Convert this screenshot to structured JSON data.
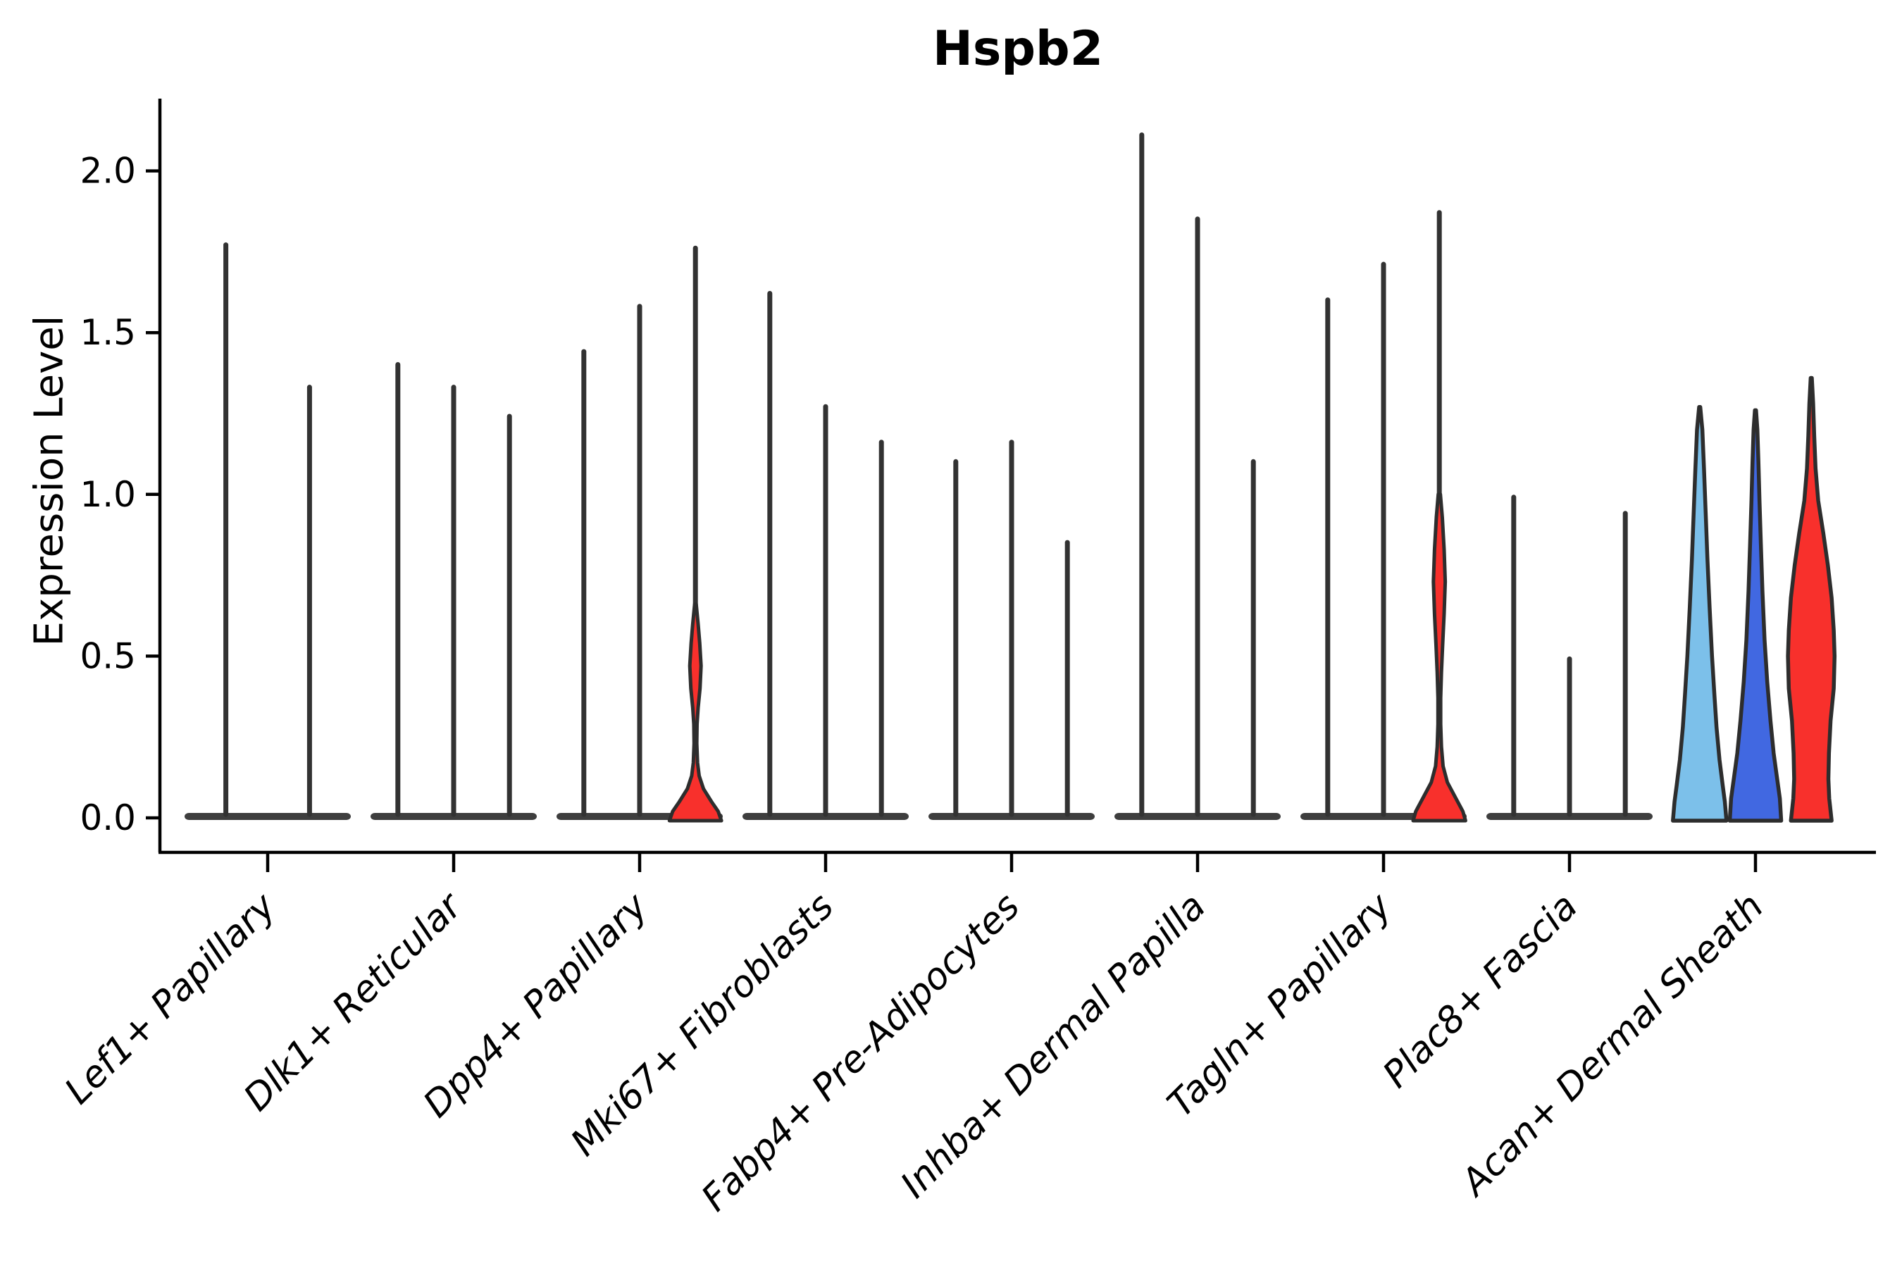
{
  "chart_data": {
    "type": "violin",
    "title": "Hspb2",
    "ylabel": "Expression Level",
    "xlabel": "",
    "grid": false,
    "legend": "none",
    "ylim": [
      0,
      2.2
    ],
    "yticks": [
      "0.0",
      "0.5",
      "1.0",
      "1.5",
      "2.0"
    ],
    "ytick_values": [
      0,
      0.5,
      1.0,
      1.5,
      2.0
    ],
    "categories": [
      "Lef1+ Papillary",
      "Dlk1+ Reticular",
      "Dpp4+ Papillary",
      "Mki67+ Fibroblasts",
      "Fabp4+ Pre-Adipocytes",
      "Inhba+ Dermal Papilla",
      "Tagln+ Papillary",
      "Plac8+ Fascia",
      "Acan+ Dermal Sheath"
    ],
    "styles": {
      "spike_color": "#323232",
      "outline": "#2d2d2d",
      "base_color": "#3e3e3e",
      "split_color_1": "#7cc0ea",
      "split_color_2": "#4168e1",
      "split_color_3": "#f8302c",
      "axis_color": "#000000"
    },
    "groups": [
      {
        "category": "Lef1+ Papillary",
        "violins": [
          {
            "type": "spike",
            "max": 1.78
          },
          {
            "type": "spike",
            "max": 1.34
          }
        ]
      },
      {
        "category": "Dlk1+ Reticular",
        "violins": [
          {
            "type": "spike",
            "max": 1.41
          },
          {
            "type": "spike",
            "max": 1.34
          },
          {
            "type": "spike",
            "max": 1.25
          }
        ]
      },
      {
        "category": "Dpp4+ Papillary",
        "violins": [
          {
            "type": "spike",
            "max": 1.45
          },
          {
            "type": "spike",
            "max": 1.59
          },
          {
            "type": "spike-belly",
            "max": 1.77,
            "color": "#f8302c",
            "belly": [
              [
                0.66,
                0.03
              ],
              [
                0.6,
                0.1
              ],
              [
                0.54,
                0.16
              ],
              [
                0.47,
                0.21
              ],
              [
                0.4,
                0.17
              ],
              [
                0.34,
                0.1
              ],
              [
                0.29,
                0.06
              ],
              [
                0.23,
                0.05
              ],
              [
                0.17,
                0.08
              ],
              [
                0.13,
                0.14
              ],
              [
                0.09,
                0.3
              ],
              [
                0.05,
                0.6
              ],
              [
                0.02,
                0.85
              ],
              [
                0,
                0.97
              ]
            ]
          }
        ]
      },
      {
        "category": "Mki67+ Fibroblasts",
        "violins": [
          {
            "type": "spike",
            "max": 1.63
          },
          {
            "type": "spike",
            "max": 1.28
          },
          {
            "type": "spike",
            "max": 1.17
          }
        ]
      },
      {
        "category": "Fabp4+ Pre-Adipocytes",
        "violins": [
          {
            "type": "spike",
            "max": 1.11
          },
          {
            "type": "spike",
            "max": 1.17
          },
          {
            "type": "spike",
            "max": 0.86
          }
        ]
      },
      {
        "category": "Inhba+ Dermal Papilla",
        "violins": [
          {
            "type": "spike",
            "max": 2.12
          },
          {
            "type": "spike",
            "max": 1.86
          },
          {
            "type": "spike",
            "max": 1.11
          }
        ]
      },
      {
        "category": "Tagln+ Papillary",
        "violins": [
          {
            "type": "spike",
            "max": 1.61
          },
          {
            "type": "spike",
            "max": 1.72
          },
          {
            "type": "spike-belly",
            "max": 1.88,
            "color": "#f8302c",
            "belly": [
              [
                1.0,
                0.04
              ],
              [
                0.93,
                0.11
              ],
              [
                0.83,
                0.18
              ],
              [
                0.73,
                0.22
              ],
              [
                0.63,
                0.18
              ],
              [
                0.53,
                0.12
              ],
              [
                0.45,
                0.08
              ],
              [
                0.37,
                0.05
              ],
              [
                0.29,
                0.05
              ],
              [
                0.22,
                0.08
              ],
              [
                0.16,
                0.14
              ],
              [
                0.11,
                0.3
              ],
              [
                0.06,
                0.62
              ],
              [
                0.02,
                0.88
              ],
              [
                0,
                0.98
              ]
            ]
          }
        ]
      },
      {
        "category": "Plac8+ Fascia",
        "violins": [
          {
            "type": "spike",
            "max": 1.0
          },
          {
            "type": "spike",
            "max": 0.5
          },
          {
            "type": "spike",
            "max": 0.95
          }
        ]
      },
      {
        "category": "Acan+ Dermal Sheath",
        "violins": [
          {
            "type": "wide",
            "max": 1.27,
            "color": "#7cc0ea",
            "profile": [
              [
                1.27,
                0.02
              ],
              [
                1.2,
                0.1
              ],
              [
                1.08,
                0.16
              ],
              [
                0.95,
                0.22
              ],
              [
                0.8,
                0.29
              ],
              [
                0.65,
                0.37
              ],
              [
                0.5,
                0.46
              ],
              [
                0.38,
                0.55
              ],
              [
                0.28,
                0.63
              ],
              [
                0.18,
                0.74
              ],
              [
                0.1,
                0.86
              ],
              [
                0.05,
                0.94
              ],
              [
                0,
                1.0
              ]
            ]
          },
          {
            "type": "wide",
            "max": 1.26,
            "color": "#4168e1",
            "profile": [
              [
                1.26,
                0.02
              ],
              [
                1.2,
                0.07
              ],
              [
                1.1,
                0.11
              ],
              [
                0.98,
                0.15
              ],
              [
                0.85,
                0.2
              ],
              [
                0.7,
                0.26
              ],
              [
                0.55,
                0.34
              ],
              [
                0.42,
                0.44
              ],
              [
                0.3,
                0.56
              ],
              [
                0.2,
                0.68
              ],
              [
                0.12,
                0.81
              ],
              [
                0.06,
                0.91
              ],
              [
                0,
                0.96
              ]
            ]
          },
          {
            "type": "wide",
            "max": 1.36,
            "color": "#f8302c",
            "profile": [
              [
                1.36,
                0.02
              ],
              [
                1.28,
                0.07
              ],
              [
                1.18,
                0.11
              ],
              [
                1.08,
                0.16
              ],
              [
                0.98,
                0.26
              ],
              [
                0.88,
                0.45
              ],
              [
                0.78,
                0.62
              ],
              [
                0.68,
                0.76
              ],
              [
                0.58,
                0.84
              ],
              [
                0.5,
                0.87
              ],
              [
                0.4,
                0.84
              ],
              [
                0.3,
                0.72
              ],
              [
                0.2,
                0.66
              ],
              [
                0.12,
                0.64
              ],
              [
                0.06,
                0.67
              ],
              [
                0,
                0.76
              ]
            ]
          }
        ]
      }
    ]
  }
}
